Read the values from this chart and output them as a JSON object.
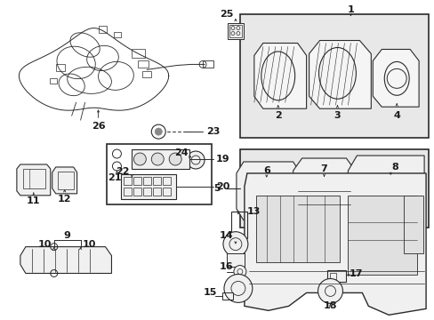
{
  "bg_color": "#ffffff",
  "fig_width": 4.89,
  "fig_height": 3.6,
  "dpi": 100,
  "line_color": "#2a2a2a",
  "text_color": "#1a1a1a",
  "fs": 7.5
}
